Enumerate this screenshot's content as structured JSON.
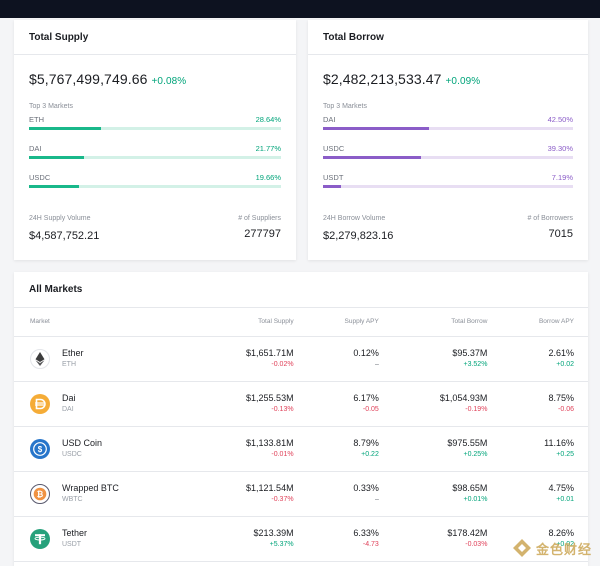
{
  "colors": {
    "green": "#00a47a",
    "red": "#e0425a",
    "supply_bar": "#19b88a",
    "supply_track": "#d3f1e7",
    "borrow_bar": "#8b5dc8",
    "borrow_track": "#e8def3"
  },
  "supply": {
    "title": "Total Supply",
    "total": "$5,767,499,749.66",
    "change": "+0.08%",
    "top_label": "Top 3 Markets",
    "markets": [
      {
        "name": "ETH",
        "pct": "28.64%",
        "value": 28.64
      },
      {
        "name": "DAI",
        "pct": "21.77%",
        "value": 21.77
      },
      {
        "name": "USDC",
        "pct": "19.66%",
        "value": 19.66
      }
    ],
    "volume_label": "24H Supply Volume",
    "volume": "$4,587,752.21",
    "count_label": "# of Suppliers",
    "count": "277797"
  },
  "borrow": {
    "title": "Total Borrow",
    "total": "$2,482,213,533.47",
    "change": "+0.09%",
    "top_label": "Top 3 Markets",
    "markets": [
      {
        "name": "DAI",
        "pct": "42.50%",
        "value": 42.5
      },
      {
        "name": "USDC",
        "pct": "39.30%",
        "value": 39.3
      },
      {
        "name": "USDT",
        "pct": "7.19%",
        "value": 7.19
      }
    ],
    "volume_label": "24H Borrow Volume",
    "volume": "$2,279,823.16",
    "count_label": "# of Borrowers",
    "count": "7015"
  },
  "markets": {
    "title": "All Markets",
    "columns": [
      "Market",
      "Total Supply",
      "Supply APY",
      "Total Borrow",
      "Borrow APY"
    ],
    "rows": [
      {
        "name": "Ether",
        "symbol": "ETH",
        "icon": "ether-icon",
        "icon_color": "#ffffff",
        "total_supply": "$1,651.71M",
        "supply_change": "-0.02%",
        "supply_apy": "0.12%",
        "supply_apy_change": "–",
        "total_borrow": "$95.37M",
        "borrow_change": "+3.52%",
        "borrow_apy": "2.61%",
        "borrow_apy_change": "+0.02"
      },
      {
        "name": "Dai",
        "symbol": "DAI",
        "icon": "dai-icon",
        "icon_color": "#f5ac37",
        "total_supply": "$1,255.53M",
        "supply_change": "-0.13%",
        "supply_apy": "6.17%",
        "supply_apy_change": "-0.05",
        "total_borrow": "$1,054.93M",
        "borrow_change": "-0.19%",
        "borrow_apy": "8.75%",
        "borrow_apy_change": "-0.06"
      },
      {
        "name": "USD Coin",
        "symbol": "USDC",
        "icon": "usdc-icon",
        "icon_color": "#2775ca",
        "total_supply": "$1,133.81M",
        "supply_change": "-0.01%",
        "supply_apy": "8.79%",
        "supply_apy_change": "+0.22",
        "total_borrow": "$975.55M",
        "borrow_change": "+0.25%",
        "borrow_apy": "11.16%",
        "borrow_apy_change": "+0.25"
      },
      {
        "name": "Wrapped BTC",
        "symbol": "WBTC",
        "icon": "wbtc-icon",
        "icon_color": "#f09242",
        "total_supply": "$1,121.54M",
        "supply_change": "-0.37%",
        "supply_apy": "0.33%",
        "supply_apy_change": "–",
        "total_borrow": "$98.65M",
        "borrow_change": "+0.01%",
        "borrow_apy": "4.75%",
        "borrow_apy_change": "+0.01"
      },
      {
        "name": "Tether",
        "symbol": "USDT",
        "icon": "tether-icon",
        "icon_color": "#26a17b",
        "total_supply": "$213.39M",
        "supply_change": "+5.37%",
        "supply_apy": "6.33%",
        "supply_apy_change": "-4.73",
        "total_borrow": "$178.42M",
        "borrow_change": "-0.03%",
        "borrow_apy": "8.26%",
        "borrow_apy_change": "+0.02"
      }
    ]
  },
  "watermark": {
    "text": "金色财经"
  }
}
